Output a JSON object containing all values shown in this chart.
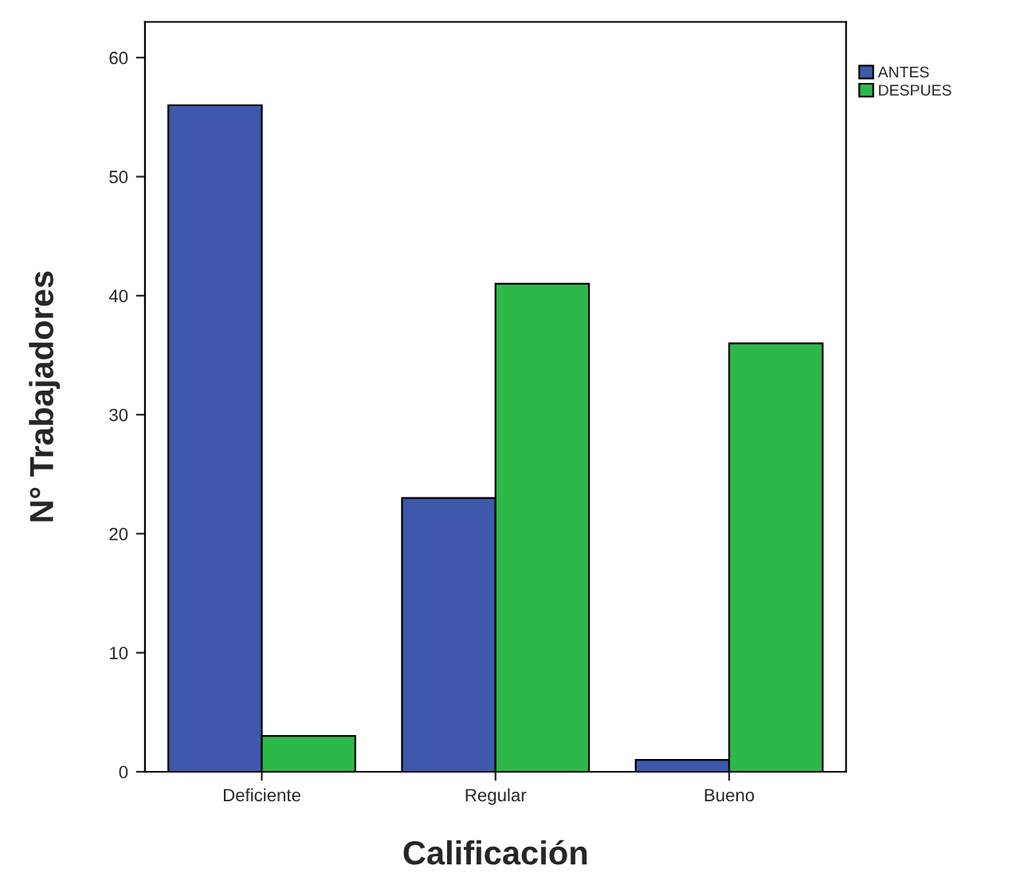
{
  "chart_data": {
    "type": "bar",
    "xlabel": "Calificación",
    "ylabel": "N° Trabajadores",
    "categories": [
      "Deficiente",
      "Regular",
      "Bueno"
    ],
    "series": [
      {
        "name": "ANTES",
        "color": "#3e58ac",
        "values": [
          56,
          23,
          1
        ]
      },
      {
        "name": "DESPUES",
        "color": "#2eb84a",
        "values": [
          3,
          41,
          36
        ]
      }
    ],
    "ylim": [
      0,
      63
    ],
    "yticks": [
      0,
      10,
      20,
      30,
      40,
      50,
      60
    ],
    "grid": false,
    "legend": "top right"
  }
}
